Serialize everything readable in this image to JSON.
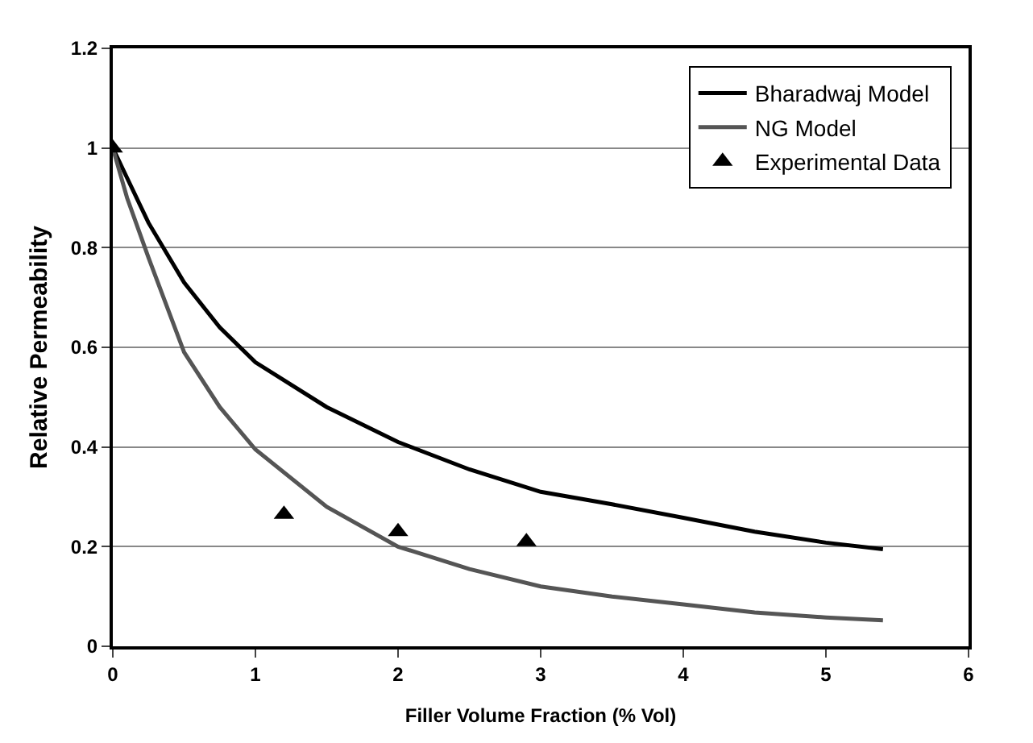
{
  "chart_data": {
    "type": "line",
    "xlabel": "Filler Volume Fraction (% Vol)",
    "ylabel": "Relative Permeability",
    "xlim": [
      0,
      6
    ],
    "xticks": [
      0,
      1,
      2,
      3,
      4,
      5,
      6
    ],
    "ylim": [
      0,
      1.2
    ],
    "yticks": [
      0,
      0.2,
      0.4,
      0.6,
      0.8,
      1,
      1.2
    ],
    "grid": "y",
    "legend": "top right",
    "marker": "none",
    "line_style": "solid",
    "series": [
      {
        "name": "Bharadwaj Model",
        "color": "#000000",
        "x": [
          0,
          0.1,
          0.25,
          0.5,
          0.75,
          1,
          1.5,
          2,
          2.5,
          3,
          3.5,
          4,
          4.5,
          5,
          5.4
        ],
        "values": [
          1,
          0.94,
          0.85,
          0.73,
          0.64,
          0.57,
          0.48,
          0.41,
          0.355,
          0.31,
          0.285,
          0.258,
          0.23,
          0.208,
          0.195
        ]
      },
      {
        "name": "NG Model",
        "color": "#555555",
        "x": [
          0,
          0.1,
          0.25,
          0.5,
          0.75,
          1,
          1.5,
          2,
          2.5,
          3,
          3.5,
          4,
          4.5,
          5,
          5.4
        ],
        "values": [
          1,
          0.9,
          0.78,
          0.59,
          0.48,
          0.395,
          0.28,
          0.2,
          0.155,
          0.12,
          0.1,
          0.084,
          0.068,
          0.058,
          0.052
        ]
      },
      {
        "name": "Experimental Data",
        "type": "scatter",
        "marker": "triangle",
        "color": "#000000",
        "x": [
          0,
          1.2,
          2,
          2.9
        ],
        "values": [
          1,
          0.265,
          0.23,
          0.21
        ]
      }
    ]
  }
}
